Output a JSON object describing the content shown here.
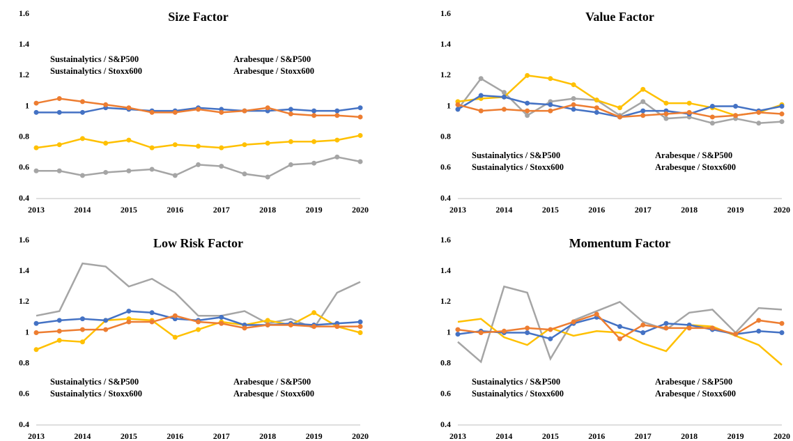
{
  "chart_data": [
    {
      "type": "line",
      "title": "Size Factor",
      "legend": "upper",
      "categories": [
        "2013",
        null,
        "2014",
        null,
        "2015",
        null,
        "2016",
        null,
        "2017",
        null,
        "2018",
        null,
        "2019",
        null,
        "2020"
      ],
      "ylim": [
        0.4,
        1.6
      ],
      "yticks": [
        0.4,
        0.6,
        0.8,
        1,
        1.2,
        1.4,
        1.6
      ],
      "grid": false,
      "series": [
        {
          "name": "Sustainalytics / S&P500",
          "color": "#a5a5a5",
          "markers": true,
          "values": [
            0.58,
            0.58,
            0.55,
            0.57,
            0.58,
            0.59,
            0.55,
            0.62,
            0.61,
            0.56,
            0.54,
            0.62,
            0.63,
            0.67,
            0.64
          ]
        },
        {
          "name": "Sustainalytics / Stoxx600",
          "color": "#ffc000",
          "markers": true,
          "values": [
            0.73,
            0.75,
            0.79,
            0.76,
            0.78,
            0.73,
            0.75,
            0.74,
            0.73,
            0.75,
            0.76,
            0.77,
            0.77,
            0.78,
            0.81
          ]
        },
        {
          "name": "Arabesque / S&P500",
          "color": "#4472c4",
          "markers": true,
          "values": [
            0.96,
            0.96,
            0.96,
            0.99,
            0.98,
            0.97,
            0.97,
            0.99,
            0.98,
            0.97,
            0.97,
            0.98,
            0.97,
            0.97,
            0.99
          ]
        },
        {
          "name": "Arabesque / Stoxx600",
          "color": "#ed7d31",
          "markers": true,
          "values": [
            1.02,
            1.05,
            1.03,
            1.01,
            0.99,
            0.96,
            0.96,
            0.98,
            0.96,
            0.97,
            0.99,
            0.95,
            0.94,
            0.94,
            0.93
          ]
        }
      ]
    },
    {
      "type": "line",
      "title": "Value Factor",
      "legend": "lower",
      "categories": [
        "2013",
        null,
        "2014",
        null,
        "2015",
        null,
        "2016",
        null,
        "2017",
        null,
        "2018",
        null,
        "2019",
        null,
        "2020"
      ],
      "ylim": [
        0.4,
        1.6
      ],
      "yticks": [
        0.4,
        0.6,
        0.8,
        1,
        1.2,
        1.4,
        1.6
      ],
      "grid": false,
      "series": [
        {
          "name": "Sustainalytics / S&P500",
          "color": "#a5a5a5",
          "markers": true,
          "values": [
            0.98,
            1.18,
            1.09,
            0.94,
            1.03,
            1.05,
            1.04,
            0.94,
            1.03,
            0.92,
            0.93,
            0.89,
            0.92,
            0.89,
            0.9
          ]
        },
        {
          "name": "Sustainalytics / Stoxx600",
          "color": "#ffc000",
          "markers": true,
          "values": [
            1.03,
            1.05,
            1.06,
            1.2,
            1.18,
            1.14,
            1.04,
            0.99,
            1.11,
            1.02,
            1.02,
            0.99,
            0.94,
            0.96,
            1.01
          ]
        },
        {
          "name": "Arabesque / S&P500",
          "color": "#4472c4",
          "markers": true,
          "values": [
            0.98,
            1.07,
            1.06,
            1.02,
            1.01,
            0.98,
            0.96,
            0.93,
            0.97,
            0.97,
            0.95,
            1.0,
            1.0,
            0.97,
            1.0
          ]
        },
        {
          "name": "Arabesque / Stoxx600",
          "color": "#ed7d31",
          "markers": true,
          "values": [
            1.01,
            0.97,
            0.98,
            0.97,
            0.97,
            1.01,
            0.99,
            0.93,
            0.94,
            0.95,
            0.96,
            0.93,
            0.94,
            0.96,
            0.95
          ]
        }
      ]
    },
    {
      "type": "line",
      "title": "Low Risk Factor",
      "legend": "lower",
      "categories": [
        "2013",
        null,
        "2014",
        null,
        "2015",
        null,
        "2016",
        null,
        "2017",
        null,
        "2018",
        null,
        "2019",
        null,
        "2020"
      ],
      "ylim": [
        0.4,
        1.6
      ],
      "yticks": [
        0.4,
        0.6,
        0.8,
        1,
        1.2,
        1.4,
        1.6
      ],
      "grid": false,
      "series": [
        {
          "name": "Sustainalytics / S&P500",
          "color": "#a5a5a5",
          "markers": false,
          "values": [
            1.11,
            1.14,
            1.45,
            1.43,
            1.3,
            1.35,
            1.26,
            1.11,
            1.11,
            1.14,
            1.06,
            1.09,
            1.03,
            1.26,
            1.33
          ]
        },
        {
          "name": "Sustainalytics / Stoxx600",
          "color": "#ffc000",
          "markers": true,
          "values": [
            0.89,
            0.95,
            0.94,
            1.08,
            1.09,
            1.08,
            0.97,
            1.02,
            1.07,
            1.05,
            1.08,
            1.05,
            1.13,
            1.04,
            1.0
          ]
        },
        {
          "name": "Arabesque / S&P500",
          "color": "#4472c4",
          "markers": true,
          "values": [
            1.06,
            1.08,
            1.09,
            1.08,
            1.14,
            1.13,
            1.09,
            1.08,
            1.1,
            1.05,
            1.05,
            1.06,
            1.05,
            1.06,
            1.07
          ]
        },
        {
          "name": "Arabesque / Stoxx600",
          "color": "#ed7d31",
          "markers": true,
          "values": [
            1.0,
            1.01,
            1.02,
            1.02,
            1.07,
            1.07,
            1.11,
            1.07,
            1.06,
            1.03,
            1.05,
            1.05,
            1.04,
            1.04,
            1.04
          ]
        }
      ]
    },
    {
      "type": "line",
      "title": "Momentum Factor",
      "legend": "lower",
      "categories": [
        "2013",
        null,
        "2014",
        null,
        "2015",
        null,
        "2016",
        null,
        "2017",
        null,
        "2018",
        null,
        "2019",
        null,
        "2020"
      ],
      "ylim": [
        0.4,
        1.6
      ],
      "yticks": [
        0.4,
        0.6,
        0.8,
        1,
        1.2,
        1.4,
        1.6
      ],
      "grid": false,
      "series": [
        {
          "name": "Sustainalytics / S&P500",
          "color": "#a5a5a5",
          "markers": false,
          "values": [
            0.94,
            0.81,
            1.3,
            1.26,
            0.83,
            1.08,
            1.14,
            1.2,
            1.07,
            1.02,
            1.13,
            1.15,
            1.0,
            1.16,
            1.15
          ]
        },
        {
          "name": "Sustainalytics / Stoxx600",
          "color": "#ffc000",
          "markers": false,
          "values": [
            1.07,
            1.09,
            0.97,
            0.92,
            1.03,
            0.98,
            1.01,
            1.0,
            0.93,
            0.88,
            1.05,
            1.04,
            0.98,
            0.92,
            0.79
          ]
        },
        {
          "name": "Arabesque / S&P500",
          "color": "#4472c4",
          "markers": true,
          "values": [
            0.99,
            1.01,
            1.0,
            1.0,
            0.96,
            1.06,
            1.1,
            1.04,
            1.0,
            1.06,
            1.05,
            1.02,
            0.99,
            1.01,
            1.0
          ]
        },
        {
          "name": "Arabesque / Stoxx600",
          "color": "#ed7d31",
          "markers": true,
          "values": [
            1.02,
            1.0,
            1.01,
            1.03,
            1.02,
            1.07,
            1.12,
            0.96,
            1.05,
            1.03,
            1.03,
            1.03,
            0.99,
            1.08,
            1.06
          ]
        }
      ]
    }
  ]
}
